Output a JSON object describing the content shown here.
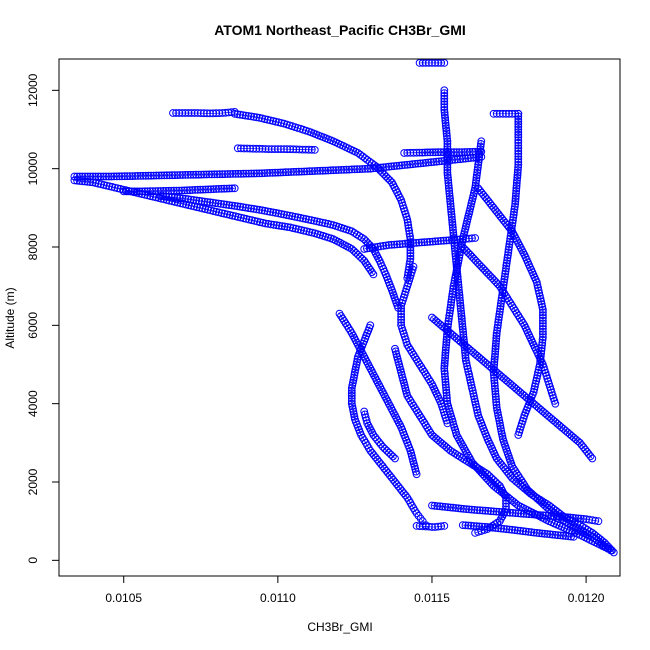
{
  "chart_data": {
    "type": "scatter",
    "title": "ATOM1 Northeast_Pacific CH3Br_GMI",
    "xlabel": "CH3Br_GMI",
    "ylabel": "Altitude (m)",
    "xlim": [
      0.01029,
      0.01211
    ],
    "ylim": [
      -400,
      12800
    ],
    "xticks": [
      0.0105,
      0.011,
      0.0115,
      0.012
    ],
    "xtick_labels": [
      "0.0105",
      "0.0110",
      "0.0115",
      "0.0120"
    ],
    "yticks": [
      0,
      2000,
      4000,
      6000,
      8000,
      10000,
      12000
    ],
    "ytick_labels": [
      "0",
      "2000",
      "4000",
      "6000",
      "8000",
      "10000",
      "12000"
    ],
    "grid": false,
    "marker": "open-circle",
    "color": "#0000ff",
    "series": [
      {
        "x": [
          0.01209,
          0.01206,
          0.01202,
          0.01198,
          0.01193,
          0.01188,
          0.01182,
          0.01176,
          0.01171,
          0.01168,
          0.01165,
          0.01163,
          0.01161,
          0.0116,
          0.01159,
          0.01158,
          0.01157,
          0.01156,
          0.01155,
          0.01155,
          0.01154,
          0.01154
        ],
        "y": [
          200,
          450,
          700,
          900,
          1100,
          1400,
          1700,
          2100,
          2600,
          3100,
          3700,
          4400,
          5100,
          5900,
          6700,
          7500,
          8300,
          9100,
          9900,
          10700,
          11500,
          12000
        ]
      },
      {
        "x": [
          0.01154,
          0.01152,
          0.0115,
          0.01148,
          0.01146
        ],
        "y": [
          12700,
          12700,
          12700,
          12700,
          12700
        ]
      },
      {
        "x": [
          0.01208,
          0.01202,
          0.01195,
          0.01188,
          0.01181,
          0.01176,
          0.01173,
          0.01171,
          0.0117,
          0.01171,
          0.01173,
          0.01175,
          0.01177,
          0.01178,
          0.01178,
          0.01178
        ],
        "y": [
          250,
          600,
          900,
          1300,
          1800,
          2400,
          3100,
          3900,
          4800,
          5800,
          6900,
          8000,
          9100,
          10100,
          10800,
          11400
        ]
      },
      {
        "x": [
          0.01178,
          0.01176,
          0.01174,
          0.01172,
          0.0117
        ],
        "y": [
          11400,
          11400,
          11400,
          11400,
          11400
        ]
      },
      {
        "x": [
          0.01207,
          0.01198,
          0.01188,
          0.01178,
          0.0117,
          0.01163,
          0.01158,
          0.01155,
          0.01154,
          0.01155,
          0.01157,
          0.0116,
          0.01164,
          0.01166
        ],
        "y": [
          300,
          650,
          1000,
          1400,
          1900,
          2500,
          3200,
          4000,
          4900,
          5900,
          7000,
          8200,
          9500,
          10700
        ]
      },
      {
        "x": [
          0.01166,
          0.0116,
          0.01154,
          0.01148,
          0.01142,
          0.01136,
          0.0113,
          0.01124,
          0.01118,
          0.01112,
          0.01106,
          0.011,
          0.01094,
          0.01088,
          0.01082,
          0.01076,
          0.0107,
          0.01064,
          0.01058,
          0.01052,
          0.01046,
          0.0104,
          0.01034
        ],
        "y": [
          10300,
          10250,
          10200,
          10150,
          10100,
          10050,
          10000,
          9980,
          9960,
          9940,
          9920,
          9900,
          9880,
          9870,
          9860,
          9850,
          9840,
          9830,
          9820,
          9810,
          9800,
          9800,
          9800
        ]
      },
      {
        "x": [
          0.01034,
          0.0104,
          0.01048,
          0.01056,
          0.01064,
          0.01072,
          0.0108,
          0.01088,
          0.01096,
          0.01104,
          0.01112,
          0.01118,
          0.01124,
          0.01128,
          0.01131
        ],
        "y": [
          9700,
          9650,
          9500,
          9350,
          9200,
          9050,
          8900,
          8750,
          8600,
          8500,
          8350,
          8200,
          7950,
          7650,
          7300
        ]
      },
      {
        "x": [
          0.01062,
          0.0107,
          0.01078,
          0.01086,
          0.01094,
          0.01102,
          0.0111,
          0.01118,
          0.01124,
          0.01128,
          0.01131,
          0.01133,
          0.01135,
          0.01137,
          0.01139
        ],
        "y": [
          9300,
          9230,
          9140,
          9050,
          8950,
          8830,
          8700,
          8560,
          8400,
          8200,
          7950,
          7650,
          7300,
          6900,
          6450
        ]
      },
      {
        "x": [
          0.0105,
          0.01056,
          0.01062,
          0.01068,
          0.01074,
          0.0108,
          0.01086
        ],
        "y": [
          9420,
          9420,
          9430,
          9440,
          9460,
          9480,
          9500
        ]
      },
      {
        "x": [
          0.01086,
          0.01094,
          0.01102,
          0.0111,
          0.01118,
          0.01126,
          0.01132,
          0.01137,
          0.0114,
          0.01142,
          0.01143,
          0.01143,
          0.01142
        ],
        "y": [
          11400,
          11300,
          11150,
          10950,
          10700,
          10400,
          10050,
          9650,
          9200,
          8700,
          8200,
          7700,
          7200
        ]
      },
      {
        "x": [
          0.01066,
          0.0107,
          0.01074,
          0.01078,
          0.01082,
          0.01086
        ],
        "y": [
          11420,
          11420,
          11420,
          11410,
          11420,
          11450
        ]
      },
      {
        "x": [
          0.01087,
          0.01092,
          0.01097,
          0.01102,
          0.01107,
          0.01112
        ],
        "y": [
          10520,
          10510,
          10500,
          10500,
          10490,
          10480
        ]
      },
      {
        "x": [
          0.01128,
          0.01136,
          0.01144,
          0.01152,
          0.0116,
          0.01164
        ],
        "y": [
          7950,
          8050,
          8100,
          8150,
          8200,
          8230
        ]
      },
      {
        "x": [
          0.01141,
          0.01146,
          0.01152,
          0.01158,
          0.01164,
          0.01166
        ],
        "y": [
          10400,
          10410,
          10420,
          10420,
          10430,
          10430
        ]
      },
      {
        "x": [
          0.0113,
          0.01128,
          0.01126,
          0.01125,
          0.01124,
          0.01124,
          0.01125,
          0.01127,
          0.0113,
          0.01134,
          0.01138,
          0.01142,
          0.01145,
          0.01147,
          0.01148
        ],
        "y": [
          6000,
          5600,
          5200,
          4800,
          4400,
          4000,
          3600,
          3200,
          2800,
          2400,
          2000,
          1600,
          1200,
          1000,
          900
        ]
      },
      {
        "x": [
          0.01145,
          0.01147,
          0.01149,
          0.0115,
          0.01151,
          0.01152,
          0.01153,
          0.01154
        ],
        "y": [
          880,
          870,
          860,
          850,
          850,
          860,
          870,
          880
        ]
      },
      {
        "x": [
          0.01138,
          0.0114,
          0.01142,
          0.01146,
          0.0115,
          0.01156,
          0.01162,
          0.01168,
          0.01172,
          0.01174,
          0.01174,
          0.01172,
          0.01168,
          0.01164
        ],
        "y": [
          5400,
          4800,
          4200,
          3700,
          3200,
          2800,
          2500,
          2200,
          1900,
          1600,
          1300,
          1000,
          800,
          700
        ]
      },
      {
        "x": [
          0.0115,
          0.01156,
          0.01162,
          0.01168,
          0.01174,
          0.0118,
          0.01186,
          0.01192,
          0.01198,
          0.01202
        ],
        "y": [
          6200,
          5800,
          5400,
          5000,
          4600,
          4200,
          3800,
          3400,
          3000,
          2600
        ]
      },
      {
        "x": [
          0.01165,
          0.0117,
          0.01176,
          0.0118,
          0.01184,
          0.01186,
          0.01186,
          0.01185,
          0.01183,
          0.0118,
          0.01178
        ],
        "y": [
          9500,
          9000,
          8400,
          7800,
          7100,
          6400,
          5700,
          5000,
          4300,
          3700,
          3200
        ]
      },
      {
        "x": [
          0.0116,
          0.01166,
          0.01172,
          0.01176,
          0.0118,
          0.01183,
          0.01186,
          0.01188,
          0.0119
        ],
        "y": [
          8000,
          7500,
          7000,
          6500,
          6000,
          5500,
          5000,
          4500,
          4000
        ]
      },
      {
        "x": [
          0.01144,
          0.01142,
          0.0114,
          0.0114,
          0.01142,
          0.01146,
          0.0115,
          0.01153,
          0.01155
        ],
        "y": [
          7500,
          7000,
          6500,
          6000,
          5500,
          5000,
          4500,
          4000,
          3500
        ]
      },
      {
        "x": [
          0.0112,
          0.01124,
          0.01128,
          0.01132,
          0.01136,
          0.0114,
          0.01143,
          0.01145
        ],
        "y": [
          6300,
          5800,
          5200,
          4600,
          4000,
          3400,
          2800,
          2200
        ]
      },
      {
        "x": [
          0.0115,
          0.01156,
          0.01162,
          0.0117,
          0.01178,
          0.01186,
          0.01194,
          0.012,
          0.01204
        ],
        "y": [
          1400,
          1350,
          1300,
          1250,
          1200,
          1150,
          1100,
          1050,
          1000
        ]
      },
      {
        "x": [
          0.0116,
          0.01168,
          0.01176,
          0.01184,
          0.0119,
          0.01196
        ],
        "y": [
          900,
          850,
          780,
          700,
          650,
          600
        ]
      },
      {
        "x": [
          0.01138,
          0.01134,
          0.01131,
          0.01129,
          0.01128
        ],
        "y": [
          2600,
          2900,
          3200,
          3500,
          3800
        ]
      }
    ]
  }
}
